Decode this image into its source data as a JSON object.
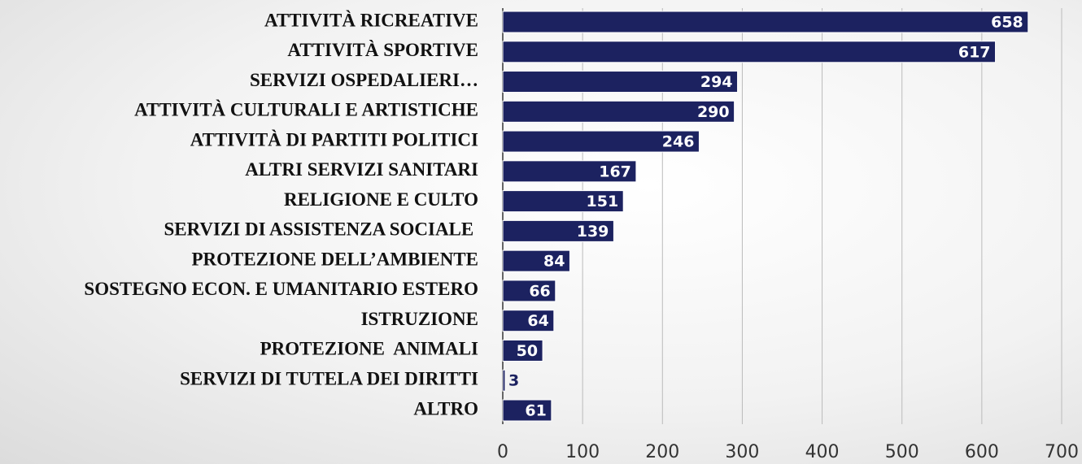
{
  "chart_data": {
    "type": "bar",
    "orientation": "horizontal",
    "categories": [
      "ATTIVITÀ RICREATIVE",
      "ATTIVITÀ SPORTIVE",
      "SERVIZI OSPEDALIERI…",
      "ATTIVITÀ CULTURALI E ARTISTICHE",
      "ATTIVITÀ DI PARTITI POLITICI",
      "ALTRI SERVIZI SANITARI",
      "RELIGIONE E CULTO",
      "SERVIZI DI ASSISTENZA SOCIALE ",
      "PROTEZIONE DELL’AMBIENTE",
      "SOSTEGNO ECON. E UMANITARIO ESTERO",
      "ISTRUZIONE",
      "PROTEZIONE  ANIMALI",
      "SERVIZI DI TUTELA DEI DIRITTI",
      "ALTRO"
    ],
    "values": [
      658,
      617,
      294,
      290,
      246,
      167,
      151,
      139,
      84,
      66,
      64,
      50,
      3,
      61
    ],
    "color": "#1c2260",
    "xlim": [
      0,
      700
    ],
    "xticks": [
      0,
      100,
      200,
      300,
      400,
      500,
      600,
      700
    ],
    "grid": true
  }
}
